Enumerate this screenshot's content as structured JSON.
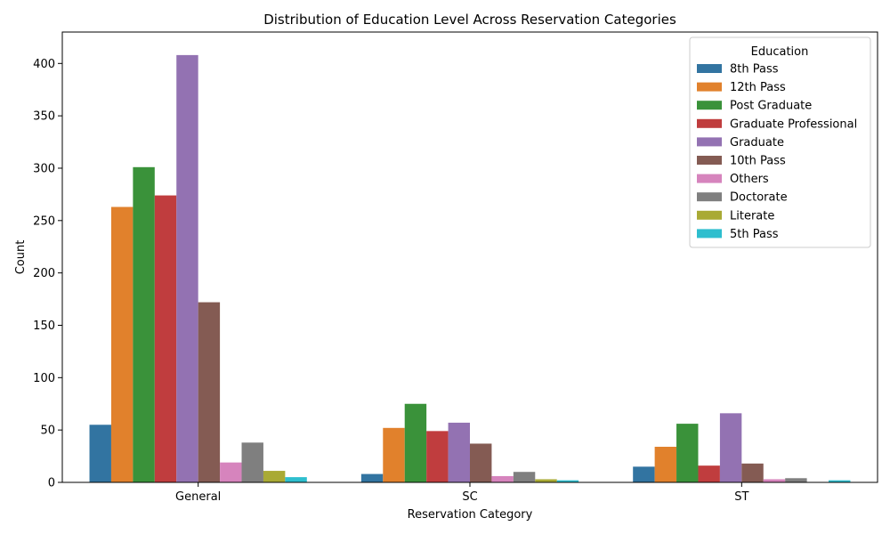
{
  "chart_data": {
    "type": "bar",
    "title": "Distribution of Education Level Across Reservation Categories",
    "xlabel": "Reservation Category",
    "ylabel": "Count",
    "ylim": [
      0,
      430
    ],
    "yticks": [
      0,
      50,
      100,
      150,
      200,
      250,
      300,
      350,
      400
    ],
    "grid": false,
    "legend": {
      "title": "Education",
      "placement": "top-right"
    },
    "categories": [
      "General",
      "SC",
      "ST"
    ],
    "series": [
      {
        "name": "8th Pass",
        "color": "#3274a1",
        "values": [
          55,
          8,
          15
        ]
      },
      {
        "name": "12th Pass",
        "color": "#e1812c",
        "values": [
          263,
          52,
          34
        ]
      },
      {
        "name": "Post Graduate",
        "color": "#3a923a",
        "values": [
          301,
          75,
          56
        ]
      },
      {
        "name": "Graduate Professional",
        "color": "#c03d3e",
        "values": [
          274,
          49,
          16
        ]
      },
      {
        "name": "Graduate",
        "color": "#9372b2",
        "values": [
          408,
          57,
          66
        ]
      },
      {
        "name": "10th Pass",
        "color": "#845b53",
        "values": [
          172,
          37,
          18
        ]
      },
      {
        "name": "Others",
        "color": "#d684bd",
        "values": [
          19,
          6,
          3
        ]
      },
      {
        "name": "Doctorate",
        "color": "#7f7f7f",
        "values": [
          38,
          10,
          4
        ]
      },
      {
        "name": "Literate",
        "color": "#a9aa35",
        "values": [
          11,
          3,
          0
        ]
      },
      {
        "name": "5th Pass",
        "color": "#2ebece",
        "values": [
          5,
          2,
          2
        ]
      }
    ]
  }
}
